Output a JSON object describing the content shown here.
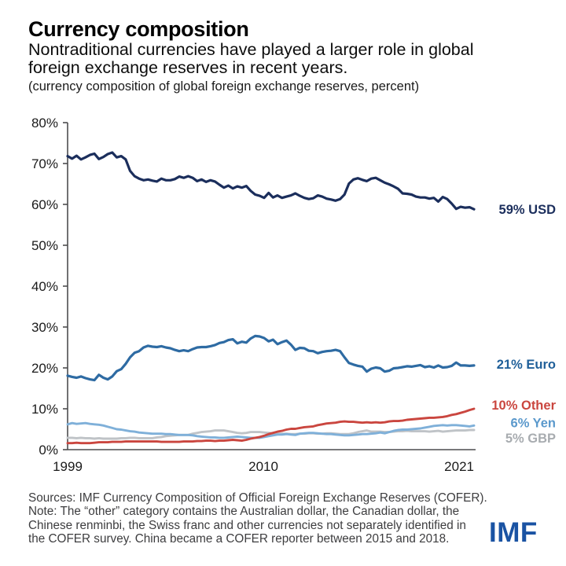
{
  "header": {
    "title": "Currency composition",
    "subtitle_line1": "Nontraditional currencies have played a larger role in global",
    "subtitle_line2": "foreign exchange reserves in recent years.",
    "note": "(currency composition of global foreign exchange reserves, percent)"
  },
  "chart_data": {
    "type": "line",
    "title": "Currency composition",
    "unit": "percent of global foreign exchange reserves",
    "x_axis": {
      "start_year": 1999,
      "end_year": 2021,
      "frequency": "quarterly"
    },
    "x_ticks": [
      {
        "year": 1999,
        "label": "1999"
      },
      {
        "year": 2010,
        "label": "2010"
      },
      {
        "year": 2021,
        "label": "2021"
      }
    ],
    "y_tick_labels": [
      "0%",
      "10%",
      "20%",
      "30%",
      "40%",
      "50%",
      "60%",
      "70%",
      "80%"
    ],
    "ylim": [
      0,
      80
    ],
    "grid": false,
    "legend_position": "right-of-line-end",
    "axis_color": "#4d4d4f",
    "series": [
      {
        "id": "usd",
        "name": "USD",
        "label": "59% USD",
        "color": "#1b2e5c",
        "label_color": "#1b2e5c",
        "values": [
          71.8,
          71.2,
          71.9,
          71.0,
          71.5,
          72.1,
          72.4,
          71.1,
          71.6,
          72.3,
          72.7,
          71.5,
          71.8,
          71.0,
          68.2,
          66.9,
          66.3,
          65.9,
          66.1,
          65.8,
          65.6,
          66.3,
          65.9,
          65.9,
          66.2,
          66.8,
          66.5,
          66.9,
          66.5,
          65.7,
          66.1,
          65.5,
          65.9,
          65.6,
          64.8,
          64.1,
          64.6,
          63.9,
          64.4,
          64.1,
          64.5,
          63.3,
          62.4,
          62.1,
          61.6,
          62.8,
          61.7,
          62.2,
          61.6,
          61.9,
          62.2,
          62.7,
          62.1,
          61.6,
          61.3,
          61.5,
          62.2,
          61.9,
          61.4,
          61.2,
          60.9,
          61.3,
          62.4,
          65.1,
          66.1,
          66.4,
          66.0,
          65.7,
          66.3,
          66.5,
          65.9,
          65.3,
          64.9,
          64.4,
          63.8,
          62.7,
          62.6,
          62.4,
          61.9,
          61.7,
          61.7,
          61.4,
          61.6,
          60.7,
          61.8,
          61.3,
          60.2,
          58.9,
          59.4,
          59.2,
          59.3,
          58.8
        ]
      },
      {
        "id": "euro",
        "name": "Euro",
        "label": "21% Euro",
        "color": "#2e6ba3",
        "label_color": "#1f5f99",
        "values": [
          18.1,
          17.8,
          17.6,
          17.9,
          17.5,
          17.2,
          17.0,
          18.3,
          17.6,
          17.2,
          17.9,
          19.2,
          19.7,
          21.0,
          22.6,
          23.7,
          24.1,
          25.0,
          25.4,
          25.2,
          25.1,
          25.3,
          25.0,
          24.8,
          24.4,
          24.1,
          24.3,
          24.1,
          24.6,
          25.0,
          25.1,
          25.1,
          25.3,
          25.6,
          26.1,
          26.3,
          26.8,
          27.0,
          26.0,
          26.4,
          26.2,
          27.2,
          27.8,
          27.7,
          27.3,
          26.5,
          26.9,
          25.8,
          26.3,
          26.7,
          25.7,
          24.4,
          24.9,
          24.8,
          24.2,
          24.1,
          23.6,
          23.9,
          24.1,
          24.2,
          24.4,
          24.1,
          22.6,
          21.2,
          20.8,
          20.5,
          20.3,
          19.1,
          19.8,
          20.1,
          19.9,
          19.1,
          19.3,
          19.9,
          20.0,
          20.2,
          20.4,
          20.3,
          20.5,
          20.7,
          20.2,
          20.4,
          20.1,
          20.6,
          20.1,
          20.2,
          20.5,
          21.3,
          20.6,
          20.6,
          20.5,
          20.6
        ]
      },
      {
        "id": "other",
        "name": "Other",
        "label": "10% Other",
        "color": "#ca463f",
        "label_color": "#ca463f",
        "values": [
          1.6,
          1.6,
          1.7,
          1.6,
          1.6,
          1.6,
          1.7,
          1.8,
          1.8,
          1.8,
          1.9,
          1.9,
          1.9,
          2.0,
          2.0,
          2.0,
          2.0,
          2.0,
          2.0,
          2.0,
          2.0,
          1.9,
          1.9,
          1.9,
          1.9,
          1.9,
          2.0,
          2.0,
          2.0,
          2.1,
          2.1,
          2.2,
          2.2,
          2.1,
          2.2,
          2.2,
          2.3,
          2.4,
          2.3,
          2.2,
          2.4,
          2.7,
          2.9,
          3.1,
          3.4,
          3.8,
          4.1,
          4.4,
          4.6,
          4.9,
          5.1,
          5.1,
          5.3,
          5.5,
          5.6,
          5.7,
          6.0,
          6.2,
          6.4,
          6.5,
          6.6,
          6.8,
          6.9,
          6.8,
          6.8,
          6.7,
          6.6,
          6.7,
          6.6,
          6.7,
          6.6,
          6.7,
          6.9,
          7.0,
          7.0,
          7.1,
          7.3,
          7.4,
          7.5,
          7.6,
          7.7,
          7.8,
          7.8,
          7.9,
          8.0,
          8.2,
          8.5,
          8.7,
          9.0,
          9.3,
          9.7,
          10.0
        ]
      },
      {
        "id": "yen",
        "name": "Yen",
        "label": "6% Yen",
        "color": "#7fb0d9",
        "label_color": "#5b99cc",
        "values": [
          6.2,
          6.5,
          6.3,
          6.4,
          6.5,
          6.3,
          6.2,
          6.1,
          5.9,
          5.6,
          5.3,
          5.0,
          4.9,
          4.7,
          4.5,
          4.4,
          4.2,
          4.1,
          4.0,
          3.9,
          3.9,
          3.9,
          3.8,
          3.8,
          3.7,
          3.6,
          3.6,
          3.6,
          3.5,
          3.3,
          3.2,
          3.1,
          3.0,
          3.0,
          2.9,
          2.9,
          3.0,
          3.1,
          3.2,
          3.1,
          3.0,
          2.9,
          2.9,
          2.9,
          3.1,
          3.3,
          3.5,
          3.7,
          3.7,
          3.8,
          3.7,
          3.6,
          3.9,
          4.0,
          4.1,
          4.1,
          4.0,
          3.9,
          3.8,
          3.8,
          3.7,
          3.6,
          3.5,
          3.5,
          3.6,
          3.7,
          3.8,
          3.8,
          3.9,
          4.0,
          4.2,
          4.0,
          4.3,
          4.6,
          4.8,
          4.9,
          4.9,
          5.0,
          5.1,
          5.2,
          5.4,
          5.6,
          5.8,
          5.9,
          6.0,
          5.9,
          6.0,
          6.0,
          5.9,
          5.8,
          5.7,
          5.9
        ]
      },
      {
        "id": "gbp",
        "name": "GBP",
        "label": "5% GBP",
        "color": "#bfc3c7",
        "label_color": "#a8acb0",
        "values": [
          2.9,
          2.9,
          2.8,
          2.9,
          2.8,
          2.8,
          2.7,
          2.8,
          2.7,
          2.7,
          2.7,
          2.7,
          2.8,
          2.8,
          2.9,
          2.9,
          2.8,
          2.8,
          2.8,
          2.8,
          3.0,
          3.1,
          3.3,
          3.4,
          3.5,
          3.6,
          3.6,
          3.6,
          3.9,
          4.1,
          4.3,
          4.4,
          4.5,
          4.7,
          4.7,
          4.7,
          4.5,
          4.3,
          4.1,
          4.0,
          4.1,
          4.3,
          4.3,
          4.3,
          4.2,
          4.1,
          4.0,
          3.9,
          3.9,
          3.9,
          3.8,
          3.8,
          3.9,
          3.9,
          4.0,
          4.0,
          3.9,
          3.9,
          4.0,
          4.0,
          3.9,
          3.8,
          3.8,
          3.8,
          4.0,
          4.3,
          4.5,
          4.7,
          4.4,
          4.4,
          4.4,
          4.3,
          4.3,
          4.4,
          4.5,
          4.5,
          4.6,
          4.5,
          4.5,
          4.5,
          4.5,
          4.4,
          4.5,
          4.6,
          4.4,
          4.5,
          4.6,
          4.7,
          4.7,
          4.7,
          4.8,
          4.8
        ]
      }
    ]
  },
  "footer": {
    "lines": [
      "Sources: IMF Currency Composition of Official Foreign Exchange Reserves (COFER).",
      "Note: The “other” category contains the Australian dollar, the Canadian dollar, the",
      "Chinese renminbi, the Swiss franc and other currencies not separately identified in",
      "the COFER survey. China became a COFER reporter between 2015 and 2018."
    ],
    "logo": "IMF"
  }
}
